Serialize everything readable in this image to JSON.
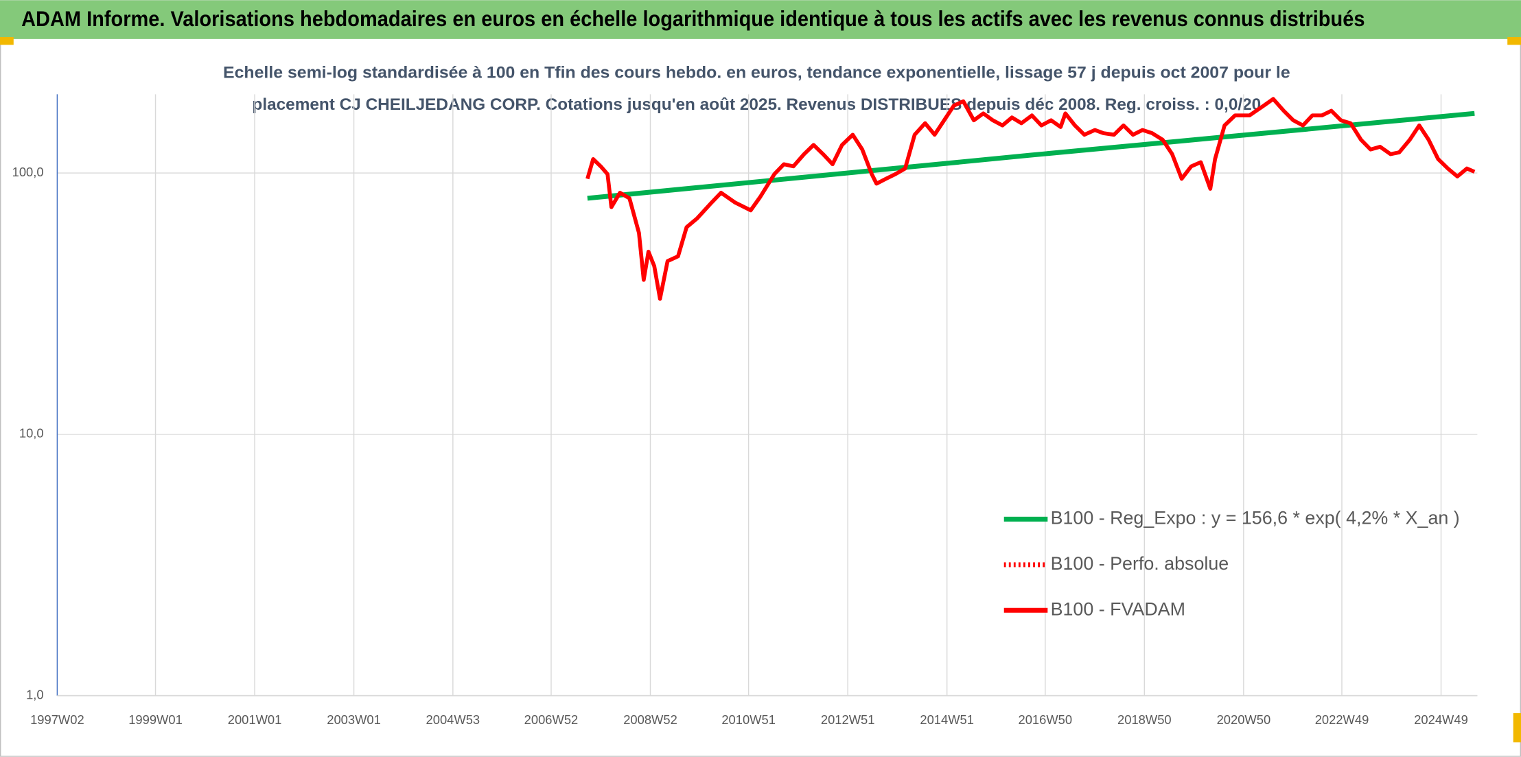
{
  "chart_data": {
    "type": "line",
    "title": "ADAM Informe. Valorisations hebdomadaires en euros en échelle logarithmique identique à tous les actifs avec les revenus connus distribués",
    "subtitle": [
      "Echelle semi-log standardisée à 100 en Tfin des cours hebdo. en euros, tendance exponentielle, lissage 57 j depuis oct 2007 pour le",
      "placement CJ CHEILJEDANG CORP. Cotations jusqu'en août 2025. Revenus DISTRIBUES depuis déc 2008. Reg. croiss. : 0,0/20"
    ],
    "log_y": true,
    "grid": true,
    "legend": "lower right",
    "xlim": [
      "1997W02",
      "2025W35"
    ],
    "xticks": [
      "1997W02",
      "1999W01",
      "2001W01",
      "2003W01",
      "2004W53",
      "2006W52",
      "2008W52",
      "2010W51",
      "2012W51",
      "2014W51",
      "2016W50",
      "2018W50",
      "2020W50",
      "2022W49",
      "2024W49"
    ],
    "ylim": [
      1,
      200
    ],
    "yticks": [
      {
        "value": 1,
        "label": "1,0"
      },
      {
        "value": 10,
        "label": "10,0"
      },
      {
        "value": 100,
        "label": "100,0"
      }
    ],
    "series": [
      {
        "name": "B100 - Reg_Expo : y = 156,6 * exp( 4,2% *  X_an )",
        "color": "#00b050",
        "dash": "solid",
        "x": [
          "2007W38",
          "2016W35",
          "2025W32"
        ],
        "values": [
          80,
          117,
          169
        ]
      },
      {
        "name": "B100 - Perfo. absolue",
        "color": "#ff0000",
        "dash": "dotted"
      },
      {
        "name": "B100 - FVADAM",
        "color": "#ff0000",
        "dash": "solid",
        "x": [
          "2007W38",
          "2007W44",
          "2007W52",
          "2008W07",
          "2008W11",
          "2008W20",
          "2008W30",
          "2008W40",
          "2008W45",
          "2008W50",
          "2009W04",
          "2009W10",
          "2009W18",
          "2009W29",
          "2009W38",
          "2009W49",
          "2010W12",
          "2010W22",
          "2010W37",
          "2011W01",
          "2011W11",
          "2011W26",
          "2011W36",
          "2011W46",
          "2012W05",
          "2012W15",
          "2012W25",
          "2012W35",
          "2012W45",
          "2013W04",
          "2013W14",
          "2013W24",
          "2013W29",
          "2013W39",
          "2013W49",
          "2014W07",
          "2014W17",
          "2014W28",
          "2014W38",
          "2014W48",
          "2015W06",
          "2015W16",
          "2015W27",
          "2015W37",
          "2015W47",
          "2016W05",
          "2016W15",
          "2016W25",
          "2016W36",
          "2016W46",
          "2017W04",
          "2017W14",
          "2017W19",
          "2017W29",
          "2017W39",
          "2017W50",
          "2018W07",
          "2018W18",
          "2018W28",
          "2018W38",
          "2018W48",
          "2019W06",
          "2019W17",
          "2019W27",
          "2019W37",
          "2019W47",
          "2020W05",
          "2020W15",
          "2020W20",
          "2020W30",
          "2020W41",
          "2021W04",
          "2021W19",
          "2021W29",
          "2021W40",
          "2021W50",
          "2022W08",
          "2022W18",
          "2022W28",
          "2022W38",
          "2022W48",
          "2023W06",
          "2023W17",
          "2023W27",
          "2023W37",
          "2023W48",
          "2024W05",
          "2024W16",
          "2024W26",
          "2024W36",
          "2024W46",
          "2025W04",
          "2025W14",
          "2025W24",
          "2025W32"
        ],
        "values": [
          95,
          113,
          106,
          99,
          74,
          84,
          80,
          59,
          39,
          50,
          44,
          33,
          46,
          48,
          62,
          67,
          77,
          84,
          77,
          72,
          81,
          99,
          108,
          106,
          118,
          128,
          118,
          108,
          128,
          140,
          123,
          99,
          91,
          95,
          99,
          104,
          140,
          155,
          140,
          159,
          181,
          188,
          159,
          169,
          159,
          152,
          163,
          155,
          166,
          152,
          159,
          150,
          169,
          152,
          140,
          146,
          142,
          140,
          152,
          140,
          146,
          142,
          134,
          118,
          95,
          106,
          110,
          87,
          113,
          152,
          166,
          166,
          181,
          192,
          173,
          159,
          152,
          166,
          166,
          173,
          159,
          155,
          134,
          123,
          126,
          118,
          120,
          134,
          152,
          134,
          113,
          104,
          97,
          104,
          101
        ]
      }
    ]
  }
}
